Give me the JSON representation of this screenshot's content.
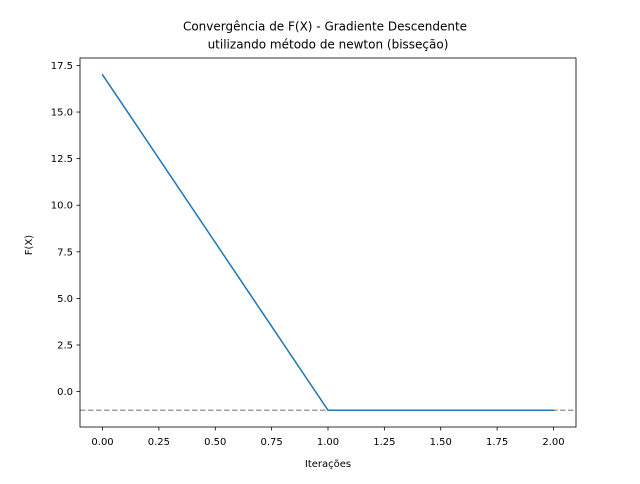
{
  "chart_data": {
    "type": "line",
    "title_lines": [
      "Convergência de F(X) - Gradiente Descendente",
      "utilizando método de newton (bisseção)"
    ],
    "xlabel": "Iterações",
    "ylabel": "F(X)",
    "xlim": [
      -0.1,
      2.1
    ],
    "ylim": [
      -1.9,
      17.9
    ],
    "xticks": [
      0.0,
      0.25,
      0.5,
      0.75,
      1.0,
      1.25,
      1.5,
      1.75,
      2.0
    ],
    "xtick_labels": [
      "0.00",
      "0.25",
      "0.50",
      "0.75",
      "1.00",
      "1.25",
      "1.50",
      "1.75",
      "2.00"
    ],
    "yticks": [
      0.0,
      2.5,
      5.0,
      7.5,
      10.0,
      12.5,
      15.0,
      17.5
    ],
    "ytick_labels": [
      "0.0",
      "2.5",
      "5.0",
      "7.5",
      "10.0",
      "12.5",
      "15.0",
      "17.5"
    ],
    "grid": false,
    "series": [
      {
        "x": [
          0,
          1,
          2
        ],
        "y": [
          17,
          -1,
          -1
        ],
        "color": "#1f77b4"
      }
    ],
    "reference_lines": [
      {
        "orientation": "horizontal",
        "y": -1,
        "style": "dashed",
        "color": "#a0a0a0"
      }
    ]
  }
}
